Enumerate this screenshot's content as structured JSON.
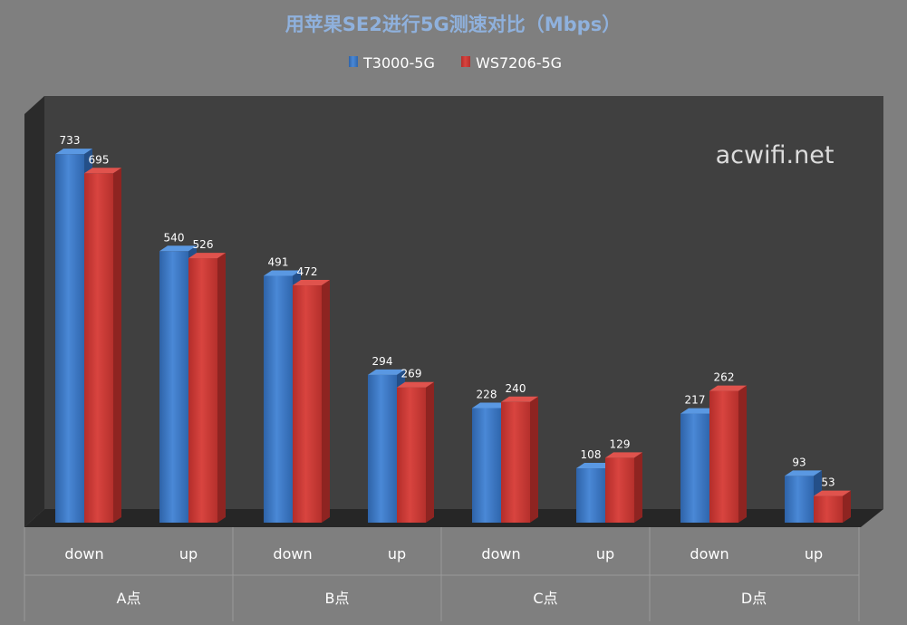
{
  "chart_data": {
    "type": "bar",
    "title": "用苹果SE2进行5G测速对比（Mbps）",
    "watermark": "acwifi.net",
    "groups": [
      {
        "label": "A点",
        "categories": [
          "down",
          "up"
        ]
      },
      {
        "label": "B点",
        "categories": [
          "down",
          "up"
        ]
      },
      {
        "label": "C点",
        "categories": [
          "down",
          "up"
        ]
      },
      {
        "label": "D点",
        "categories": [
          "down",
          "up"
        ]
      }
    ],
    "categories": [
      "down",
      "up",
      "down",
      "up",
      "down",
      "up",
      "down",
      "up"
    ],
    "series": [
      {
        "name": "T3000-5G",
        "color": "#3a78c8",
        "values": [
          733,
          540,
          491,
          294,
          228,
          108,
          217,
          93
        ]
      },
      {
        "name": "WS7206-5G",
        "color": "#d03a36",
        "values": [
          695,
          526,
          472,
          269,
          240,
          129,
          262,
          53
        ]
      }
    ],
    "ylim": [
      0,
      800
    ],
    "grid": false,
    "legend_position": "top",
    "data_labels": true,
    "style": "3d-column",
    "colors": {
      "background": "#7f7f7f",
      "plot_back_wall": "#404040",
      "plot_side_wall": "#2b2b2b",
      "floor": "#262626",
      "title": "#8fb1dd",
      "label_text": "#ffffff",
      "watermark": "#dcdcdc"
    }
  }
}
